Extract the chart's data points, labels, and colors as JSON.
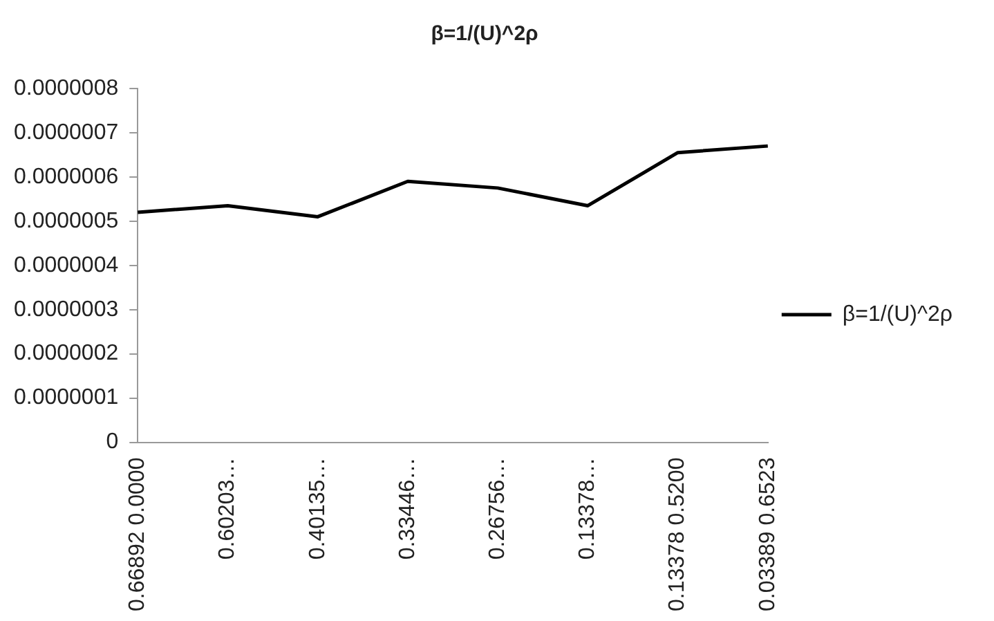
{
  "chart_data": {
    "type": "line",
    "title": "β=1/(U)^2ρ",
    "categories": [
      "0.66892 0.0000",
      "0.60203…",
      "0.40135…",
      "0.33446…",
      "0.26756…",
      "0.13378…",
      "0.13378 0.5200",
      "0.03389 0.6523"
    ],
    "series": [
      {
        "name": "β=1/(U)^2ρ",
        "color": "#000000",
        "values": [
          5.2e-07,
          5.35e-07,
          5.1e-07,
          5.9e-07,
          5.75e-07,
          5.35e-07,
          6.55e-07,
          6.7e-07
        ]
      }
    ],
    "ylim": [
      0,
      8e-07
    ],
    "yticks": [
      {
        "value": 0,
        "label": "0"
      },
      {
        "value": 1e-07,
        "label": "0.0000001"
      },
      {
        "value": 2e-07,
        "label": "0.0000002"
      },
      {
        "value": 3e-07,
        "label": "0.0000003"
      },
      {
        "value": 4e-07,
        "label": "0.0000004"
      },
      {
        "value": 5e-07,
        "label": "0.0000005"
      },
      {
        "value": 6e-07,
        "label": "0.0000006"
      },
      {
        "value": 7e-07,
        "label": "0.0000007"
      },
      {
        "value": 8e-07,
        "label": "0.0000008"
      }
    ],
    "grid": false,
    "legend": "right",
    "marker": "none",
    "line_style": "solid"
  }
}
